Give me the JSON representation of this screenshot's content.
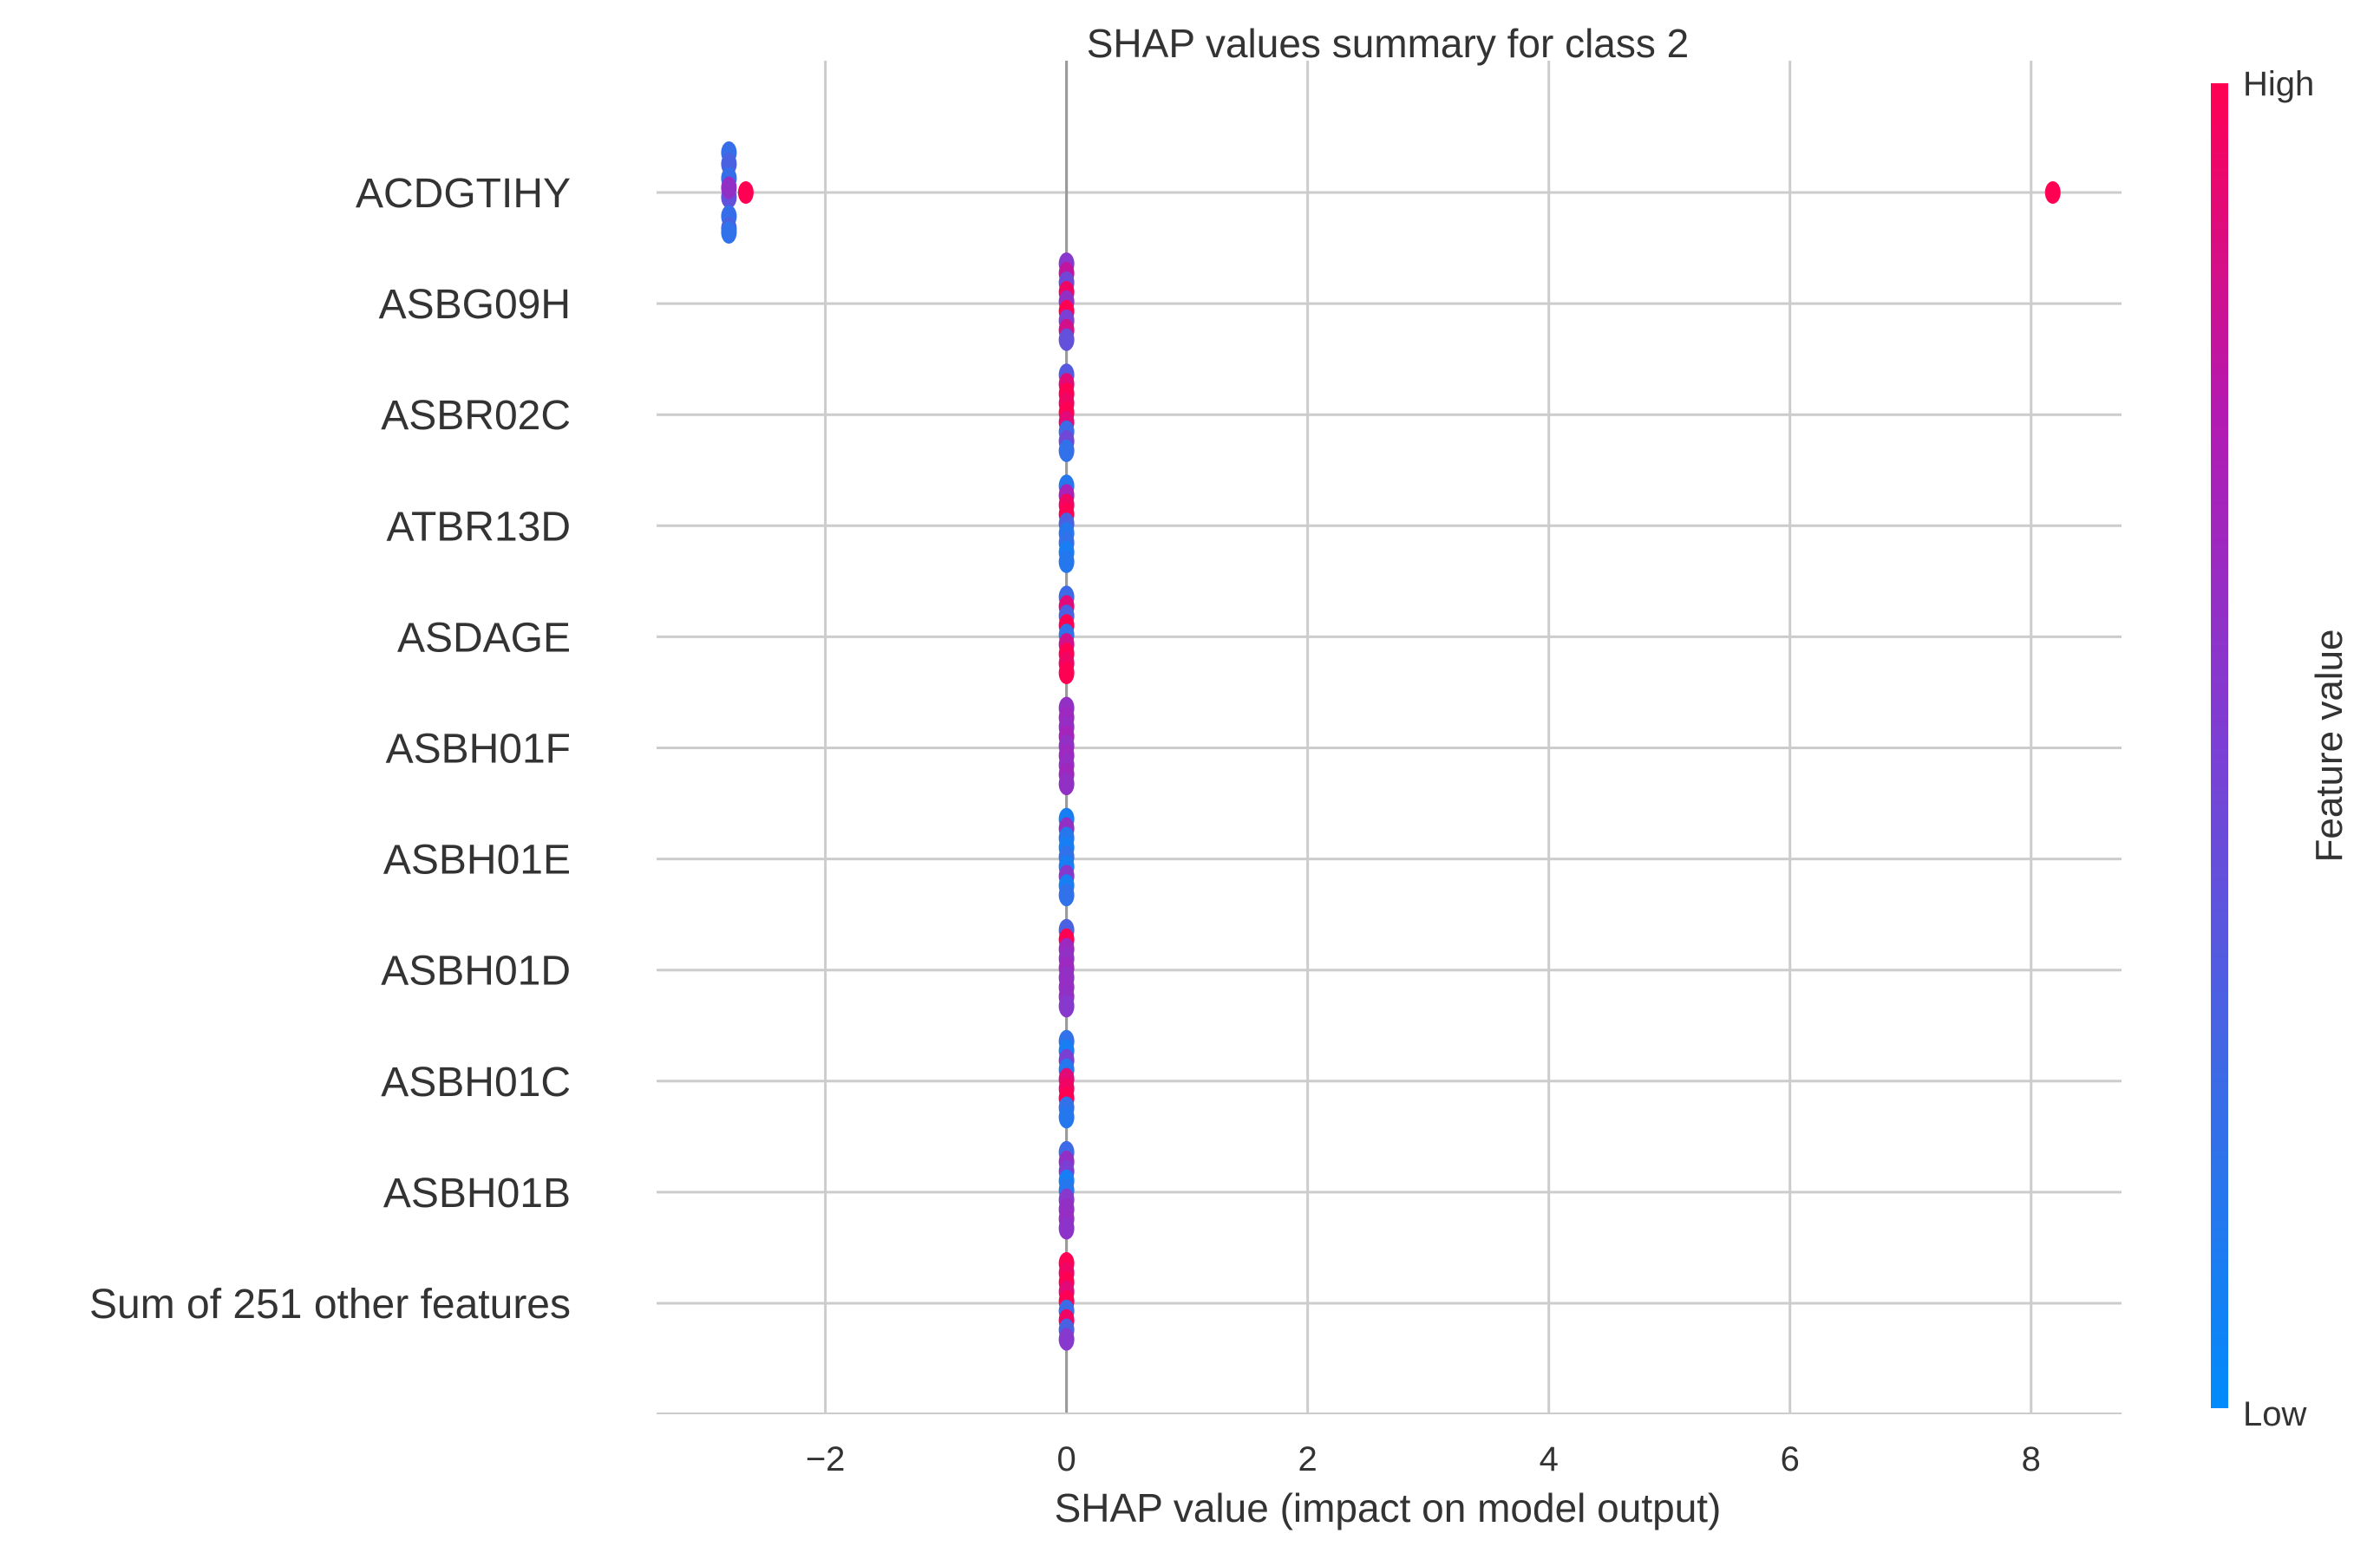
{
  "chart_data": {
    "type": "scatter",
    "subtype": "shap-beeswarm",
    "title": "SHAP values summary for class 2",
    "xlabel": "SHAP value (impact on model output)",
    "ylabel": "",
    "xlim": [
      -3.4,
      8.75
    ],
    "xticks": [
      -2,
      0,
      2,
      4,
      6,
      8
    ],
    "xtick_labels": [
      "−2",
      "0",
      "2",
      "4",
      "6",
      "8"
    ],
    "grid": true,
    "zero_line": true,
    "features": [
      {
        "name": "ACDGTIHY",
        "points": [
          {
            "x": -2.8,
            "spread": 0.42,
            "value": 0.22
          },
          {
            "x": -2.8,
            "spread": 0.3,
            "value": 0.3
          },
          {
            "x": -2.8,
            "spread": 0.15,
            "value": 0.22
          },
          {
            "x": -2.8,
            "spread": -0.05,
            "value": 0.4
          },
          {
            "x": -2.8,
            "spread": -0.25,
            "value": 0.22
          },
          {
            "x": -2.8,
            "spread": -0.38,
            "value": 0.3
          },
          {
            "x": -2.8,
            "spread": -0.42,
            "value": 0.2
          },
          {
            "x": -2.8,
            "spread": 0.05,
            "value": 0.6
          },
          {
            "x": -2.66,
            "spread": 0.0,
            "value": 1.0
          },
          {
            "x": 8.18,
            "spread": 0.0,
            "value": 1.0
          }
        ]
      },
      {
        "name": "ASBG09H",
        "points": [
          {
            "x": 0,
            "spread": 0.42,
            "value": 0.55
          },
          {
            "x": 0,
            "spread": 0.32,
            "value": 0.8
          },
          {
            "x": 0,
            "spread": 0.22,
            "value": 0.45
          },
          {
            "x": 0,
            "spread": 0.12,
            "value": 0.95
          },
          {
            "x": 0,
            "spread": 0.02,
            "value": 0.6
          },
          {
            "x": 0,
            "spread": -0.08,
            "value": 1.0
          },
          {
            "x": 0,
            "spread": -0.18,
            "value": 0.5
          },
          {
            "x": 0,
            "spread": -0.28,
            "value": 0.85
          },
          {
            "x": 0,
            "spread": -0.38,
            "value": 0.4
          }
        ]
      },
      {
        "name": "ASBR02C",
        "points": [
          {
            "x": 0,
            "spread": 0.42,
            "value": 0.35
          },
          {
            "x": 0,
            "spread": 0.32,
            "value": 0.9
          },
          {
            "x": 0,
            "spread": 0.22,
            "value": 1.0
          },
          {
            "x": 0,
            "spread": 0.12,
            "value": 0.95
          },
          {
            "x": 0,
            "spread": 0.02,
            "value": 1.0
          },
          {
            "x": 0,
            "spread": -0.08,
            "value": 0.9
          },
          {
            "x": 0,
            "spread": -0.18,
            "value": 0.25
          },
          {
            "x": 0,
            "spread": -0.28,
            "value": 0.45
          },
          {
            "x": 0,
            "spread": -0.38,
            "value": 0.2
          }
        ]
      },
      {
        "name": "ATBR13D",
        "points": [
          {
            "x": 0,
            "spread": 0.42,
            "value": 0.15
          },
          {
            "x": 0,
            "spread": 0.32,
            "value": 0.7
          },
          {
            "x": 0,
            "spread": 0.22,
            "value": 0.95
          },
          {
            "x": 0,
            "spread": 0.12,
            "value": 1.0
          },
          {
            "x": 0,
            "spread": 0.02,
            "value": 0.3
          },
          {
            "x": 0,
            "spread": -0.08,
            "value": 0.15
          },
          {
            "x": 0,
            "spread": -0.18,
            "value": 0.2
          },
          {
            "x": 0,
            "spread": -0.28,
            "value": 0.1
          },
          {
            "x": 0,
            "spread": -0.38,
            "value": 0.15
          }
        ]
      },
      {
        "name": "ASDAGE",
        "points": [
          {
            "x": 0,
            "spread": 0.42,
            "value": 0.25
          },
          {
            "x": 0,
            "spread": 0.32,
            "value": 0.9
          },
          {
            "x": 0,
            "spread": 0.22,
            "value": 0.3
          },
          {
            "x": 0,
            "spread": 0.12,
            "value": 1.0
          },
          {
            "x": 0,
            "spread": 0.02,
            "value": 0.2
          },
          {
            "x": 0,
            "spread": -0.08,
            "value": 0.85
          },
          {
            "x": 0,
            "spread": -0.18,
            "value": 1.0
          },
          {
            "x": 0,
            "spread": -0.28,
            "value": 0.95
          },
          {
            "x": 0,
            "spread": -0.38,
            "value": 1.0
          }
        ]
      },
      {
        "name": "ASBH01F",
        "points": [
          {
            "x": 0,
            "spread": 0.42,
            "value": 0.6
          },
          {
            "x": 0,
            "spread": 0.32,
            "value": 0.65
          },
          {
            "x": 0,
            "spread": 0.22,
            "value": 0.62
          },
          {
            "x": 0,
            "spread": 0.12,
            "value": 0.68
          },
          {
            "x": 0,
            "spread": 0.02,
            "value": 0.6
          },
          {
            "x": 0,
            "spread": -0.08,
            "value": 0.65
          },
          {
            "x": 0,
            "spread": -0.18,
            "value": 0.62
          },
          {
            "x": 0,
            "spread": -0.28,
            "value": 0.66
          },
          {
            "x": 0,
            "spread": -0.38,
            "value": 0.6
          }
        ]
      },
      {
        "name": "ASBH01E",
        "points": [
          {
            "x": 0,
            "spread": 0.42,
            "value": 0.1
          },
          {
            "x": 0,
            "spread": 0.32,
            "value": 0.6
          },
          {
            "x": 0,
            "spread": 0.22,
            "value": 0.15
          },
          {
            "x": 0,
            "spread": 0.12,
            "value": 0.1
          },
          {
            "x": 0,
            "spread": 0.02,
            "value": 0.2
          },
          {
            "x": 0,
            "spread": -0.08,
            "value": 0.1
          },
          {
            "x": 0,
            "spread": -0.18,
            "value": 0.55
          },
          {
            "x": 0,
            "spread": -0.28,
            "value": 0.1
          },
          {
            "x": 0,
            "spread": -0.38,
            "value": 0.2
          }
        ]
      },
      {
        "name": "ASBH01D",
        "points": [
          {
            "x": 0,
            "spread": 0.42,
            "value": 0.3
          },
          {
            "x": 0,
            "spread": 0.32,
            "value": 1.0
          },
          {
            "x": 0,
            "spread": 0.22,
            "value": 0.65
          },
          {
            "x": 0,
            "spread": 0.12,
            "value": 0.6
          },
          {
            "x": 0,
            "spread": 0.02,
            "value": 0.65
          },
          {
            "x": 0,
            "spread": -0.08,
            "value": 0.6
          },
          {
            "x": 0,
            "spread": -0.18,
            "value": 0.62
          },
          {
            "x": 0,
            "spread": -0.28,
            "value": 0.6
          },
          {
            "x": 0,
            "spread": -0.38,
            "value": 0.55
          }
        ]
      },
      {
        "name": "ASBH01C",
        "points": [
          {
            "x": 0,
            "spread": 0.42,
            "value": 0.2
          },
          {
            "x": 0,
            "spread": 0.32,
            "value": 0.1
          },
          {
            "x": 0,
            "spread": 0.22,
            "value": 0.5
          },
          {
            "x": 0,
            "spread": 0.12,
            "value": 0.15
          },
          {
            "x": 0,
            "spread": 0.02,
            "value": 0.9
          },
          {
            "x": 0,
            "spread": -0.08,
            "value": 0.95
          },
          {
            "x": 0,
            "spread": -0.18,
            "value": 1.0
          },
          {
            "x": 0,
            "spread": -0.28,
            "value": 0.2
          },
          {
            "x": 0,
            "spread": -0.38,
            "value": 0.15
          }
        ]
      },
      {
        "name": "ASBH01B",
        "points": [
          {
            "x": 0,
            "spread": 0.42,
            "value": 0.25
          },
          {
            "x": 0,
            "spread": 0.32,
            "value": 0.6
          },
          {
            "x": 0,
            "spread": 0.22,
            "value": 0.5
          },
          {
            "x": 0,
            "spread": 0.12,
            "value": 0.1
          },
          {
            "x": 0,
            "spread": 0.02,
            "value": 0.15
          },
          {
            "x": 0,
            "spread": -0.08,
            "value": 0.55
          },
          {
            "x": 0,
            "spread": -0.18,
            "value": 0.6
          },
          {
            "x": 0,
            "spread": -0.28,
            "value": 0.62
          },
          {
            "x": 0,
            "spread": -0.38,
            "value": 0.58
          }
        ]
      },
      {
        "name": "Sum of 251 other features",
        "points": [
          {
            "x": 0,
            "spread": 0.42,
            "value": 1.0
          },
          {
            "x": 0,
            "spread": 0.32,
            "value": 0.95
          },
          {
            "x": 0,
            "spread": 0.22,
            "value": 1.0
          },
          {
            "x": 0,
            "spread": 0.12,
            "value": 0.9
          },
          {
            "x": 0,
            "spread": 0.02,
            "value": 1.0
          },
          {
            "x": 0,
            "spread": -0.08,
            "value": 0.25
          },
          {
            "x": 0,
            "spread": -0.18,
            "value": 0.95
          },
          {
            "x": 0,
            "spread": -0.28,
            "value": 0.3
          },
          {
            "x": 0,
            "spread": -0.38,
            "value": 0.55
          }
        ]
      }
    ],
    "colorbar": {
      "label": "Feature value",
      "high_label": "High",
      "low_label": "Low",
      "colors": [
        "#008bfb",
        "#3d6ae6",
        "#7c3fd4",
        "#b31ab2",
        "#ff0052"
      ]
    },
    "colors": {
      "grid": "#cccccc",
      "zero_line": "#999999",
      "text": "#333333"
    }
  }
}
